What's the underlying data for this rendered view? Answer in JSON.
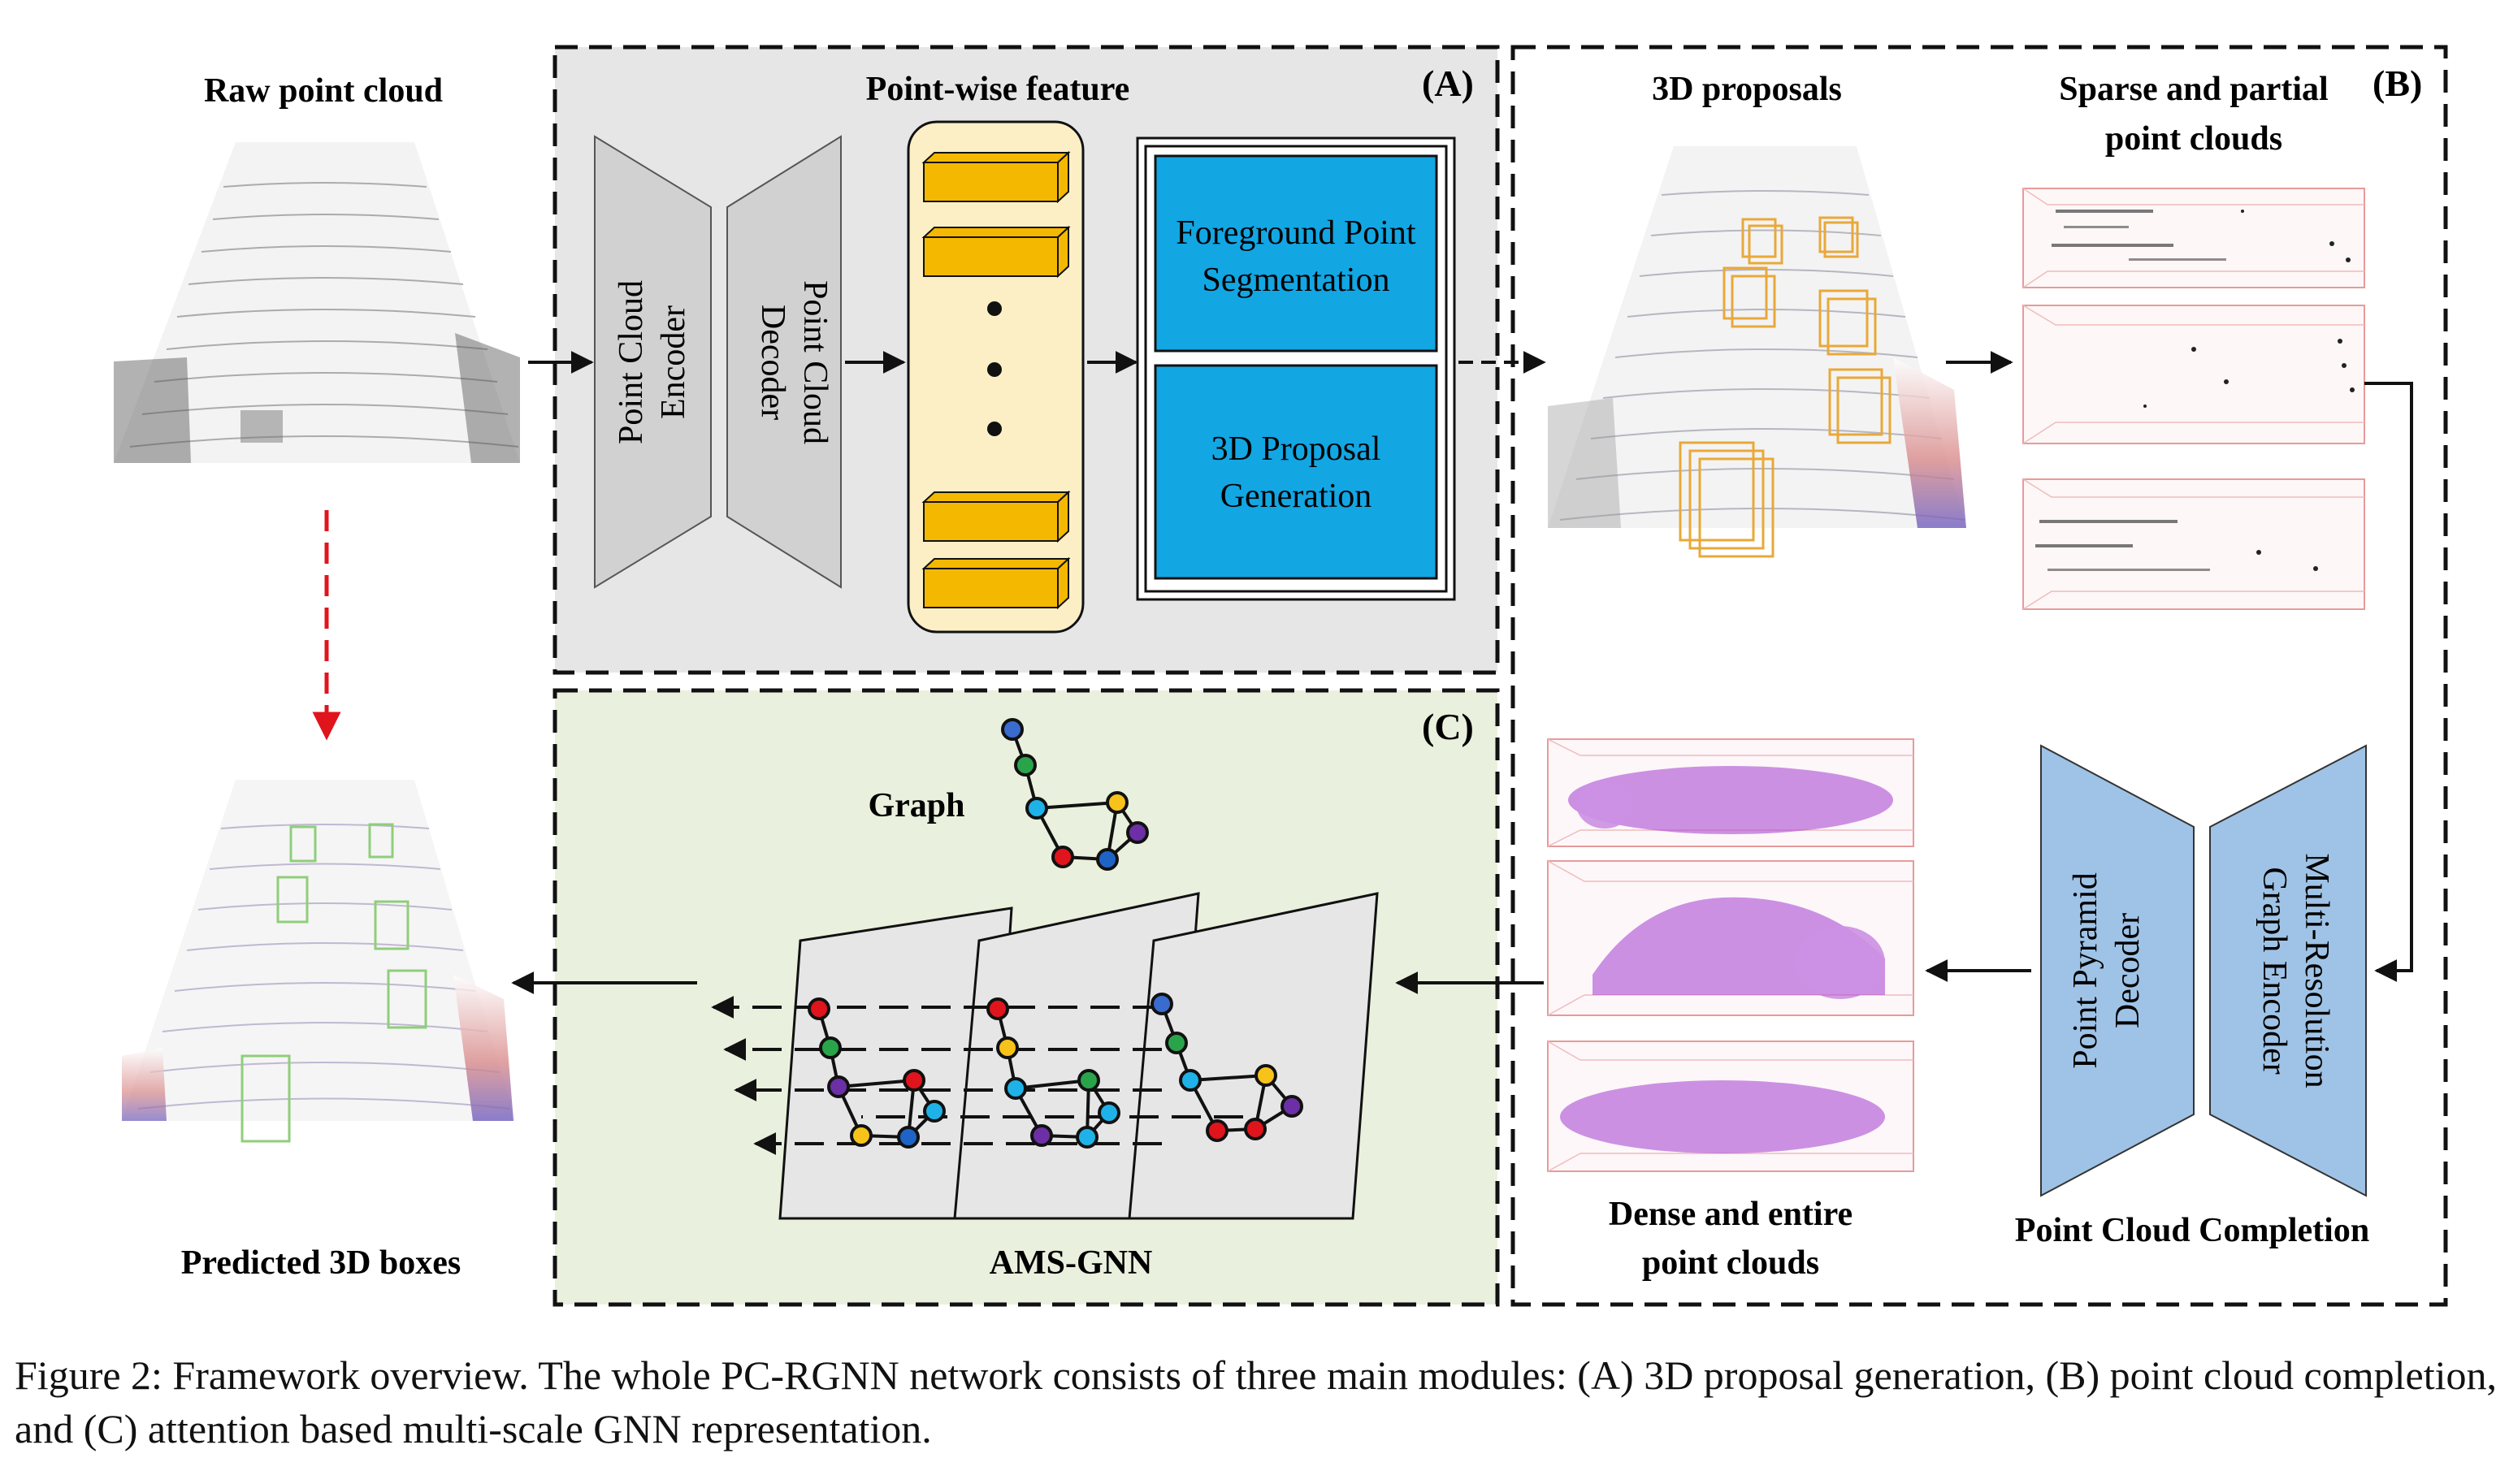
{
  "labels": {
    "raw_point_cloud": "Raw point cloud",
    "predicted_boxes": "Predicted 3D boxes",
    "point_wise_feature": "Point-wise feature",
    "module_a": "(A)",
    "module_b": "(B)",
    "module_c": "(C)",
    "encoder_line1": "Point Cloud",
    "encoder_line2": "Encoder",
    "decoder_line1": "Point Cloud",
    "decoder_line2": "Decoder",
    "fg_line1": "Foreground Point",
    "fg_line2": "Segmentation",
    "prop_line1": "3D Proposal",
    "prop_line2": "Generation",
    "proposals_3d": "3D proposals",
    "sparse_line1": "Sparse and partial",
    "sparse_line2": "point clouds",
    "dense_line1": "Dense and entire",
    "dense_line2": "point clouds",
    "completion": "Point Cloud Completion",
    "pyramid_line1": "Point Pyramid",
    "pyramid_line2": "Decoder",
    "multires_line1": "Multi-Resolution",
    "multires_line2": "Graph Encoder",
    "graph": "Graph",
    "ams_gnn": "AMS-GNN"
  },
  "caption": "Figure 2: Framework overview. The whole PC-RGNN network consists of three main modules: (A) 3D proposal generation, (B) point cloud completion, and (C) attention based multi-scale GNN representation.",
  "colors": {
    "panel_a_bg": "#e6e6e6",
    "panel_c_bg": "#e9f0dd",
    "enc_dec_fill": "#d1d1d1",
    "feature_bg": "#fcefc6",
    "feature_bar": "#f5b800",
    "blue_box": "#12a6e3",
    "completion_fill": "#9fc3e6",
    "proposal_box": "#e9a83a",
    "pred_box": "#8fce7a",
    "dense_points": "#a43cd0",
    "red_arrow": "#e0141c"
  },
  "icons": [
    "raw-point-cloud-image",
    "predicted-boxes-image",
    "proposals-image",
    "sparse-clouds-image",
    "dense-clouds-image",
    "graph-icon"
  ]
}
